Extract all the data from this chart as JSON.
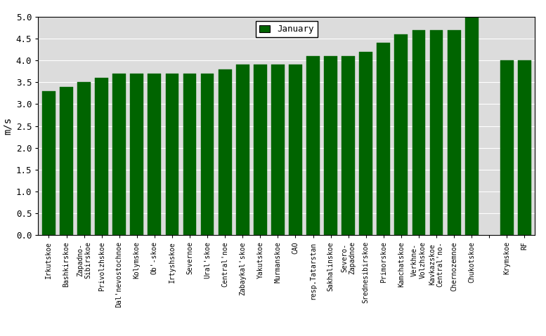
{
  "categories": [
    "Irkutskoe",
    "Bashkirskoe",
    "Zapadno-\nSibirskoe",
    "Privolzhskoe",
    "Dal'nevostochnoe",
    "Kolymskoe",
    "Ob'-skoe",
    "Irtyshskoe",
    "Severnoe",
    "Ural'skoe",
    "Central'noe",
    "Zabaykal'skoe",
    "Yakutskoe",
    "Murmanskoe",
    "CAO",
    "resp.Tatarstan",
    "Sakhalinskoe",
    "Severo-\nZapadnoe",
    "Srednesibirskoe",
    "Primorskoe",
    "Kamchatskoe",
    "Verkhne-\nVolzhskoe",
    "Kavkazskoe\nCentral'no-",
    "Chernozemnoe",
    "Chukotskoe",
    "",
    "Krymskoe",
    "RF"
  ],
  "values": [
    3.3,
    3.4,
    3.5,
    3.6,
    3.7,
    3.7,
    3.7,
    3.7,
    3.7,
    3.7,
    3.8,
    3.9,
    3.9,
    3.9,
    3.9,
    4.1,
    4.1,
    4.1,
    4.2,
    4.4,
    4.6,
    4.7,
    4.7,
    4.7,
    5.0,
    0,
    4.0,
    4.0
  ],
  "bar_color": "#006400",
  "ylabel": "m/s",
  "ylim": [
    0,
    5.0
  ],
  "yticks": [
    0,
    0.5,
    1.0,
    1.5,
    2.0,
    2.5,
    3.0,
    3.5,
    4.0,
    4.5,
    5.0
  ],
  "legend_label": "January",
  "legend_color": "#006400",
  "background_color": "#dcdcdc",
  "figure_background": "#ffffff",
  "bar_width": 0.75
}
